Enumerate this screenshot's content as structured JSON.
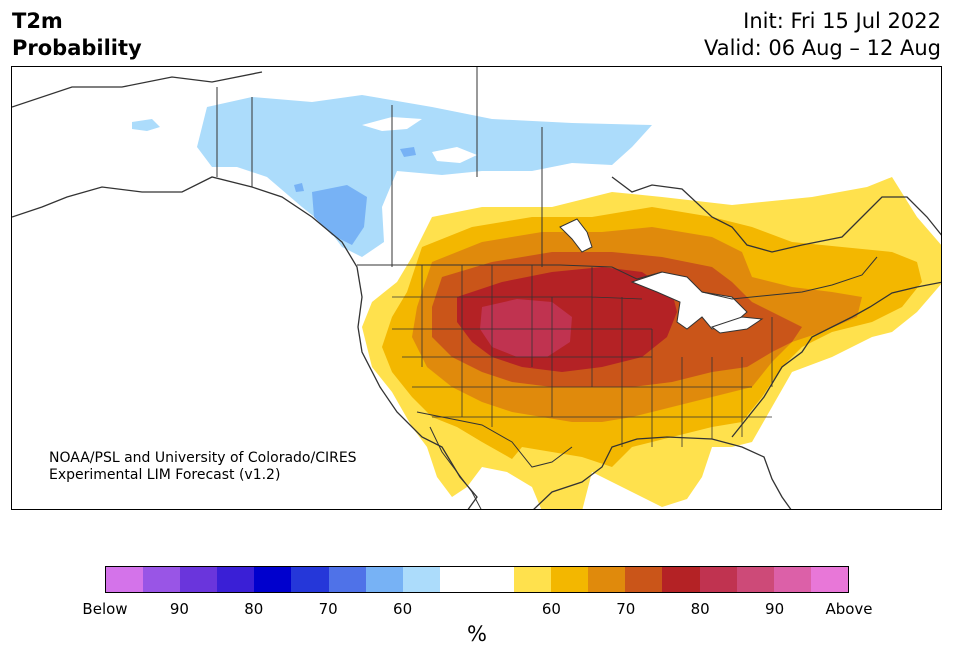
{
  "header": {
    "title_line1": "T2m",
    "title_line2": "Probability",
    "init": "Init: Fri 15 Jul 2022",
    "valid": "Valid: 06 Aug – 12 Aug"
  },
  "credit": {
    "line1": "NOAA/PSL and University of Colorado/CIRES",
    "line2": "Experimental LIM Forecast (v1.2)"
  },
  "colorbar": {
    "colors": [
      "#d473ea",
      "#9955e6",
      "#6a35dc",
      "#3a1fd6",
      "#0000cd",
      "#2537d9",
      "#4f72e8",
      "#77b2f5",
      "#acdcfb",
      "#ffffff",
      "#ffffff",
      "#ffe14d",
      "#f3b700",
      "#e08a0c",
      "#ca5519",
      "#b42225",
      "#c03350",
      "#cd4a78",
      "#dc60a8",
      "#e877d8"
    ],
    "tick_labels": [
      "Below",
      "90",
      "80",
      "70",
      "60",
      "60",
      "70",
      "80",
      "90",
      "Above"
    ],
    "unit": "%"
  },
  "map_colors": {
    "above_50": "#ffe14d",
    "above_60": "#f3b700",
    "above_70": "#e08a0c",
    "above_75": "#ca5519",
    "above_80": "#b42225",
    "above_85": "#c03350",
    "below_55": "#acdcfb",
    "below_60": "#77b2f5",
    "below_65": "#4f72e8",
    "borders": "#333333",
    "lakes": "#ffffff"
  }
}
